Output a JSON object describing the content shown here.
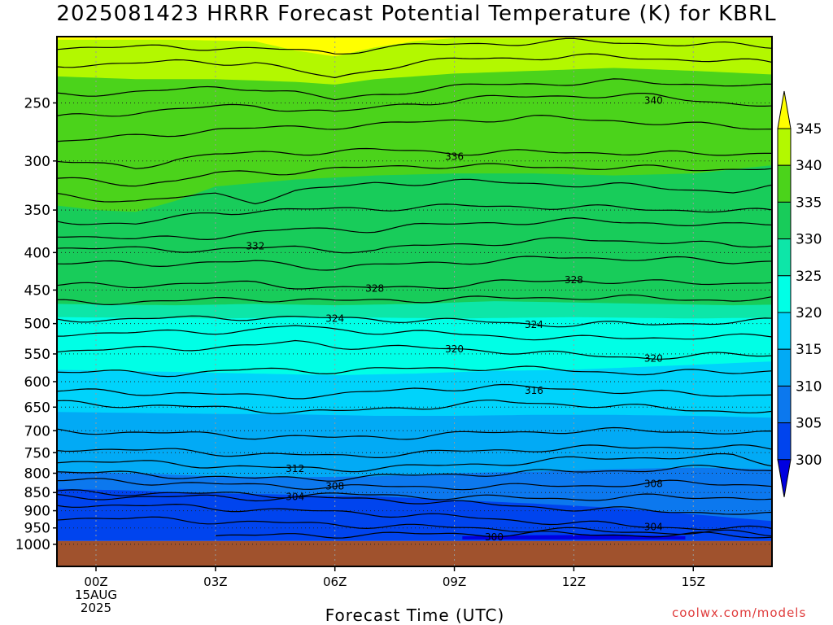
{
  "chart_data": {
    "type": "heatmap",
    "title": "2025081423 HRRR Forecast Potential Temperature (K) for KBRL",
    "xlabel": "Forecast Time (UTC)",
    "ylabel": "",
    "x_ticks": [
      "00Z",
      "03Z",
      "06Z",
      "09Z",
      "12Z",
      "15Z"
    ],
    "x_date_label": [
      "15AUG",
      "2025"
    ],
    "y_ticks": [
      250,
      300,
      350,
      400,
      450,
      500,
      550,
      600,
      650,
      700,
      750,
      800,
      850,
      900,
      950,
      1000
    ],
    "ylim_hpa": [
      1000,
      200
    ],
    "y_scale": "log-pressure",
    "grid": "dotted",
    "colorbar": {
      "levels": [
        300,
        305,
        310,
        315,
        320,
        325,
        330,
        335,
        340,
        345
      ],
      "colors": [
        "#0000e0",
        "#0044ee",
        "#0c78ee",
        "#02aaf5",
        "#00d3fb",
        "#00ffe6",
        "#0de6a8",
        "#18cc5a",
        "#4bd31b",
        "#b3f800",
        "#ffff00"
      ],
      "labels": [
        "300",
        "305",
        "310",
        "315",
        "320",
        "325",
        "330",
        "335",
        "340",
        "345"
      ]
    },
    "contour_labels": [
      {
        "value": "340",
        "time": "14Z",
        "pres": 248
      },
      {
        "value": "336",
        "time": "09Z",
        "pres": 296
      },
      {
        "value": "332",
        "time": "04Z",
        "pres": 392
      },
      {
        "value": "328",
        "time": "07Z",
        "pres": 448
      },
      {
        "value": "328",
        "time": "12Z",
        "pres": 436
      },
      {
        "value": "324",
        "time": "06Z",
        "pres": 492
      },
      {
        "value": "324",
        "time": "11Z",
        "pres": 502
      },
      {
        "value": "320",
        "time": "09Z",
        "pres": 542
      },
      {
        "value": "320",
        "time": "14Z",
        "pres": 558
      },
      {
        "value": "316",
        "time": "11Z",
        "pres": 617
      },
      {
        "value": "312",
        "time": "05Z",
        "pres": 789
      },
      {
        "value": "308",
        "time": "06Z",
        "pres": 833
      },
      {
        "value": "308",
        "time": "14Z",
        "pres": 827
      },
      {
        "value": "304",
        "time": "05Z",
        "pres": 862
      },
      {
        "value": "304",
        "time": "14Z",
        "pres": 947
      },
      {
        "value": "300",
        "time": "10Z",
        "pres": 978
      }
    ],
    "ground": {
      "color": "#a0522d"
    }
  },
  "credit": "coolwx.com/models"
}
